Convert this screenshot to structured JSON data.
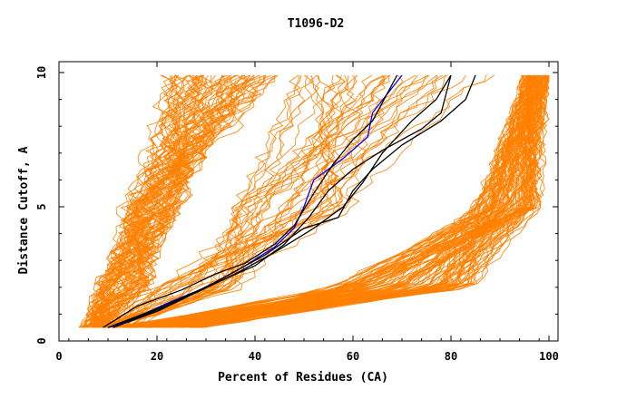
{
  "chart_data": {
    "type": "line",
    "title": "T1096-D2",
    "xlabel": "Percent of Residues (CA)",
    "ylabel": "Distance Cutoff, A",
    "xlim": [
      0,
      100
    ],
    "ylim": [
      0,
      10
    ],
    "x_ticks": [
      0,
      20,
      40,
      60,
      80,
      100
    ],
    "x_tick_labels": [
      "0",
      "20",
      "40",
      "60",
      "80",
      "100"
    ],
    "y_ticks": [
      0,
      5,
      10
    ],
    "y_tick_labels": [
      "0",
      "5",
      "10"
    ],
    "grid": false,
    "legend": "none",
    "colors": {
      "background_models": "#ff8000",
      "highlight_model": "#0000ff",
      "reference_models": "#000000"
    },
    "series": [
      {
        "role": "highlight",
        "color": "#0000ff",
        "points": [
          [
            10,
            0.5
          ],
          [
            15,
            0.8
          ],
          [
            22,
            1.4
          ],
          [
            30,
            2.0
          ],
          [
            38,
            2.8
          ],
          [
            44,
            3.5
          ],
          [
            48,
            4.2
          ],
          [
            50,
            5.0
          ],
          [
            52,
            6.0
          ],
          [
            58,
            6.8
          ],
          [
            63,
            7.6
          ],
          [
            64,
            8.5
          ],
          [
            70,
            9.9
          ]
        ]
      },
      {
        "role": "reference",
        "color": "#000000",
        "points": [
          [
            9,
            0.5
          ],
          [
            16,
            1.3
          ],
          [
            25,
            1.9
          ],
          [
            32,
            2.5
          ],
          [
            38,
            2.9
          ],
          [
            44,
            3.6
          ],
          [
            48,
            4.3
          ],
          [
            52,
            5.5
          ],
          [
            56,
            6.6
          ],
          [
            60,
            7.5
          ],
          [
            64,
            8.2
          ],
          [
            69,
            9.9
          ]
        ]
      },
      {
        "role": "reference",
        "color": "#000000",
        "points": [
          [
            10,
            0.5
          ],
          [
            20,
            1.2
          ],
          [
            30,
            2.0
          ],
          [
            40,
            2.8
          ],
          [
            46,
            3.6
          ],
          [
            51,
            4.6
          ],
          [
            55,
            5.6
          ],
          [
            60,
            6.4
          ],
          [
            66,
            7.1
          ],
          [
            74,
            7.9
          ],
          [
            78,
            8.5
          ],
          [
            80,
            9.9
          ]
        ]
      },
      {
        "role": "reference",
        "color": "#000000",
        "points": [
          [
            11,
            0.5
          ],
          [
            22,
            1.3
          ],
          [
            32,
            2.2
          ],
          [
            42,
            3.2
          ],
          [
            50,
            4.2
          ],
          [
            57,
            4.6
          ],
          [
            60,
            5.6
          ],
          [
            64,
            6.4
          ],
          [
            70,
            7.3
          ],
          [
            78,
            8.2
          ],
          [
            83,
            9.0
          ],
          [
            85,
            9.9
          ]
        ]
      },
      {
        "role": "reference",
        "color": "#000000",
        "points": [
          [
            11,
            0.5
          ],
          [
            20,
            1.1
          ],
          [
            28,
            1.8
          ],
          [
            36,
            2.5
          ],
          [
            44,
            3.3
          ],
          [
            52,
            4.2
          ],
          [
            58,
            5.0
          ],
          [
            62,
            5.9
          ],
          [
            66,
            7.0
          ],
          [
            72,
            8.2
          ],
          [
            77,
            9.0
          ],
          [
            80,
            9.9
          ]
        ]
      }
    ]
  }
}
